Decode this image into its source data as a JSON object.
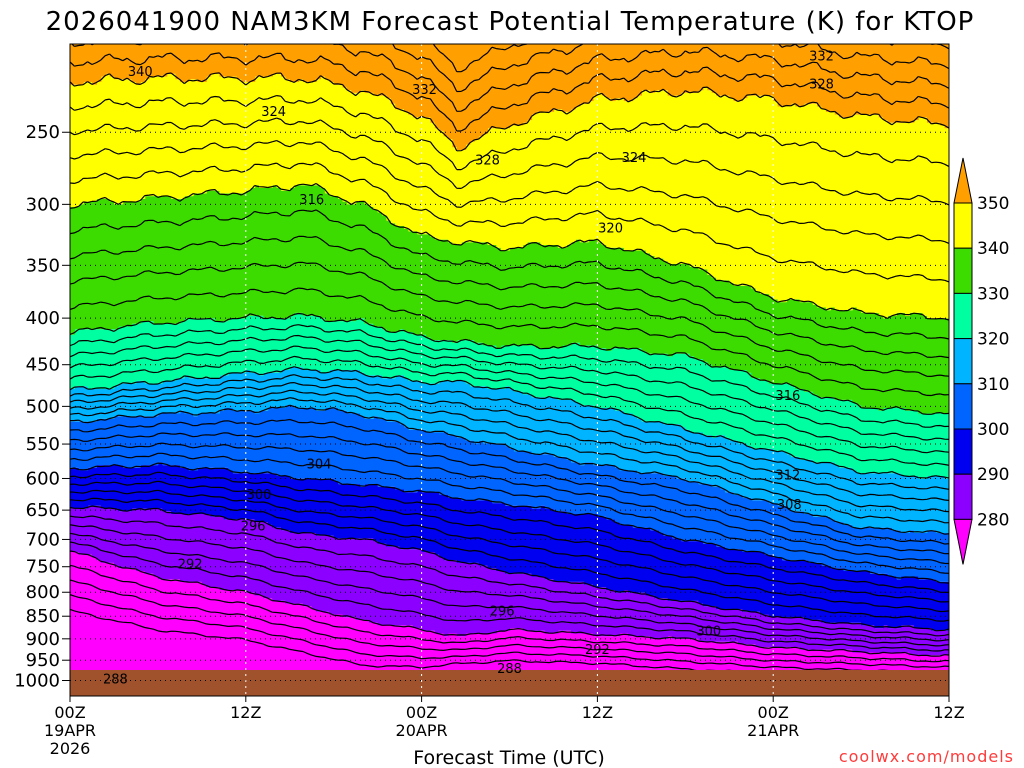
{
  "chart_data": {
    "type": "contour",
    "title": "2026041900 NAM3KM Forecast Potential Temperature (K) for KTOP",
    "xlabel": "Forecast Time (UTC)",
    "ylabel": "",
    "credit": "coolwx.com/models",
    "x": {
      "range_hours": [
        0,
        60
      ],
      "ticks": [
        {
          "hour": 0,
          "label": "00Z",
          "sub1": "19APR",
          "sub2": "2026"
        },
        {
          "hour": 12,
          "label": "12Z",
          "sub1": "",
          "sub2": ""
        },
        {
          "hour": 24,
          "label": "00Z",
          "sub1": "20APR",
          "sub2": ""
        },
        {
          "hour": 36,
          "label": "12Z",
          "sub1": "",
          "sub2": ""
        },
        {
          "hour": 48,
          "label": "00Z",
          "sub1": "21APR",
          "sub2": ""
        },
        {
          "hour": 60,
          "label": "12Z",
          "sub1": "",
          "sub2": ""
        }
      ]
    },
    "y": {
      "unit": "hPa",
      "range": [
        200,
        1040
      ],
      "ticks": [
        "250",
        "300",
        "350",
        "400",
        "450",
        "500",
        "550",
        "600",
        "650",
        "700",
        "750",
        "800",
        "850",
        "900",
        "950",
        "1000"
      ]
    },
    "colorbar": {
      "levels": [
        280,
        290,
        300,
        310,
        320,
        330,
        340,
        350
      ],
      "labels": [
        "280",
        "290",
        "300",
        "310",
        "320",
        "330",
        "340",
        "350"
      ],
      "colors": [
        "#ff00ff",
        "#8b00ff",
        "#0000f0",
        "#0064ff",
        "#00b4ff",
        "#00ffa0",
        "#3cdc00",
        "#ffff00",
        "#ffa000"
      ]
    },
    "surface_color": "#a0522d",
    "contour_interval_K": 2,
    "contour_labels": [
      {
        "text": "340",
        "hour": 4.8,
        "p": 214
      },
      {
        "text": "332",
        "hour": 24.2,
        "p": 224
      },
      {
        "text": "332",
        "hour": 51.3,
        "p": 206
      },
      {
        "text": "328",
        "hour": 51.3,
        "p": 221
      },
      {
        "text": "324",
        "hour": 13.9,
        "p": 237
      },
      {
        "text": "328",
        "hour": 28.5,
        "p": 268
      },
      {
        "text": "324",
        "hour": 38.5,
        "p": 266
      },
      {
        "text": "316",
        "hour": 16.5,
        "p": 296
      },
      {
        "text": "320",
        "hour": 36.9,
        "p": 318
      },
      {
        "text": "316",
        "hour": 49.0,
        "p": 486
      },
      {
        "text": "304",
        "hour": 17.0,
        "p": 578
      },
      {
        "text": "312",
        "hour": 49.0,
        "p": 594
      },
      {
        "text": "300",
        "hour": 12.9,
        "p": 624
      },
      {
        "text": "308",
        "hour": 49.1,
        "p": 640
      },
      {
        "text": "296",
        "hour": 12.5,
        "p": 676
      },
      {
        "text": "292",
        "hour": 8.2,
        "p": 744
      },
      {
        "text": "296",
        "hour": 29.5,
        "p": 838
      },
      {
        "text": "300",
        "hour": 43.6,
        "p": 881
      },
      {
        "text": "292",
        "hour": 36.0,
        "p": 924
      },
      {
        "text": "288",
        "hour": 30.0,
        "p": 969
      },
      {
        "text": "288",
        "hour": 3.1,
        "p": 995
      }
    ]
  }
}
